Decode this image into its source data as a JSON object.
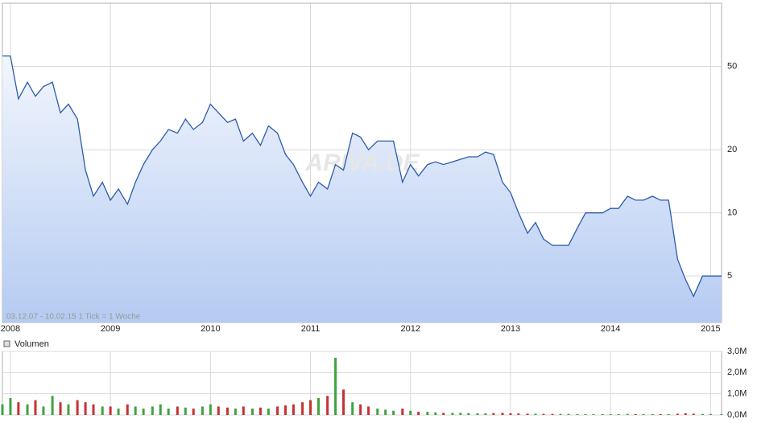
{
  "chart_data": [
    {
      "type": "line",
      "info": "03.12.07 - 10.02.15   1 Tick = 1 Woche",
      "watermark": "ARIVA.DE",
      "log_scale": true,
      "grid": true,
      "color": "#2a5caa",
      "area": true,
      "xlim": [
        2007.92,
        2015.11
      ],
      "xticks": [
        2008,
        2009,
        2010,
        2011,
        2012,
        2013,
        2014,
        2015
      ],
      "ylim": [
        3,
        100
      ],
      "yticks": [
        5,
        10,
        20,
        50
      ],
      "x": [
        2007.92,
        2008.0,
        2008.08,
        2008.17,
        2008.25,
        2008.33,
        2008.42,
        2008.5,
        2008.58,
        2008.67,
        2008.75,
        2008.83,
        2008.92,
        2009.0,
        2009.08,
        2009.17,
        2009.25,
        2009.33,
        2009.42,
        2009.5,
        2009.58,
        2009.67,
        2009.75,
        2009.83,
        2009.92,
        2010.0,
        2010.08,
        2010.17,
        2010.25,
        2010.33,
        2010.42,
        2010.5,
        2010.58,
        2010.67,
        2010.75,
        2010.83,
        2010.92,
        2011.0,
        2011.08,
        2011.17,
        2011.25,
        2011.33,
        2011.42,
        2011.5,
        2011.58,
        2011.67,
        2011.75,
        2011.83,
        2011.92,
        2012.0,
        2012.08,
        2012.17,
        2012.25,
        2012.33,
        2012.42,
        2012.5,
        2012.58,
        2012.67,
        2012.75,
        2012.83,
        2012.92,
        2013.0,
        2013.08,
        2013.17,
        2013.25,
        2013.33,
        2013.42,
        2013.5,
        2013.58,
        2013.67,
        2013.75,
        2013.83,
        2013.92,
        2014.0,
        2014.08,
        2014.17,
        2014.25,
        2014.33,
        2014.42,
        2014.5,
        2014.58,
        2014.67,
        2014.75,
        2014.83,
        2014.92,
        2015.0,
        2015.11
      ],
      "values": [
        56,
        56,
        35,
        42,
        36,
        40,
        42,
        30,
        33,
        28,
        16,
        12,
        14,
        11.5,
        13,
        11,
        14,
        17,
        20,
        22,
        25,
        24,
        28,
        25,
        27,
        33,
        30,
        27,
        28,
        22,
        24,
        21,
        26,
        24,
        19,
        17,
        14,
        12,
        14,
        13,
        17,
        16,
        24,
        23,
        20,
        22,
        22,
        22,
        14,
        17,
        15,
        17,
        17.5,
        17,
        17.5,
        18,
        18.5,
        18.5,
        19.5,
        19,
        14,
        12.5,
        10,
        8,
        9,
        7.5,
        7,
        7,
        7,
        8.5,
        10,
        10,
        10,
        10.5,
        10.5,
        12,
        11.5,
        11.5,
        12,
        11.5,
        11.5,
        6,
        4.8,
        4,
        5,
        5,
        5
      ]
    },
    {
      "type": "bar",
      "title": "Volumen",
      "grid": true,
      "up_color": "#3fa33f",
      "down_color": "#c83232",
      "xlim": [
        2007.92,
        2015.11
      ],
      "xticks": [
        2008,
        2009,
        2010,
        2011,
        2012,
        2013,
        2014,
        2015
      ],
      "ylim": [
        0,
        3000000
      ],
      "yticks": [
        {
          "value": 0,
          "label": "0,0M"
        },
        {
          "value": 1000000,
          "label": "1,0M"
        },
        {
          "value": 2000000,
          "label": "2,0M"
        },
        {
          "value": 3000000,
          "label": "3,0M"
        }
      ],
      "x": [
        2007.92,
        2008.0,
        2008.08,
        2008.17,
        2008.25,
        2008.33,
        2008.42,
        2008.5,
        2008.58,
        2008.67,
        2008.75,
        2008.83,
        2008.92,
        2009.0,
        2009.08,
        2009.17,
        2009.25,
        2009.33,
        2009.42,
        2009.5,
        2009.58,
        2009.67,
        2009.75,
        2009.83,
        2009.92,
        2010.0,
        2010.08,
        2010.17,
        2010.25,
        2010.33,
        2010.42,
        2010.5,
        2010.58,
        2010.67,
        2010.75,
        2010.83,
        2010.92,
        2011.0,
        2011.08,
        2011.17,
        2011.25,
        2011.33,
        2011.42,
        2011.5,
        2011.58,
        2011.67,
        2011.75,
        2011.83,
        2011.92,
        2012.0,
        2012.08,
        2012.17,
        2012.25,
        2012.33,
        2012.42,
        2012.5,
        2012.58,
        2012.67,
        2012.75,
        2012.83,
        2012.92,
        2013.0,
        2013.08,
        2013.17,
        2013.25,
        2013.33,
        2013.42,
        2013.5,
        2013.58,
        2013.67,
        2013.75,
        2013.83,
        2013.92,
        2014.0,
        2014.08,
        2014.17,
        2014.25,
        2014.33,
        2014.42,
        2014.5,
        2014.58,
        2014.67,
        2014.75,
        2014.83,
        2014.92,
        2015.0,
        2015.11
      ],
      "values": [
        500000,
        800000,
        600000,
        500000,
        700000,
        400000,
        900000,
        600000,
        500000,
        700000,
        600000,
        500000,
        400000,
        400000,
        300000,
        500000,
        400000,
        300000,
        400000,
        500000,
        300000,
        400000,
        350000,
        300000,
        400000,
        500000,
        400000,
        350000,
        300000,
        400000,
        300000,
        350000,
        300000,
        400000,
        450000,
        500000,
        600000,
        700000,
        800000,
        900000,
        2700000,
        1200000,
        600000,
        500000,
        400000,
        300000,
        250000,
        200000,
        300000,
        200000,
        150000,
        150000,
        120000,
        100000,
        100000,
        100000,
        90000,
        80000,
        80000,
        90000,
        100000,
        80000,
        70000,
        60000,
        60000,
        50000,
        50000,
        50000,
        50000,
        40000,
        40000,
        40000,
        40000,
        40000,
        40000,
        50000,
        40000,
        40000,
        40000,
        40000,
        40000,
        60000,
        80000,
        60000,
        50000,
        50000,
        40000
      ]
    }
  ]
}
